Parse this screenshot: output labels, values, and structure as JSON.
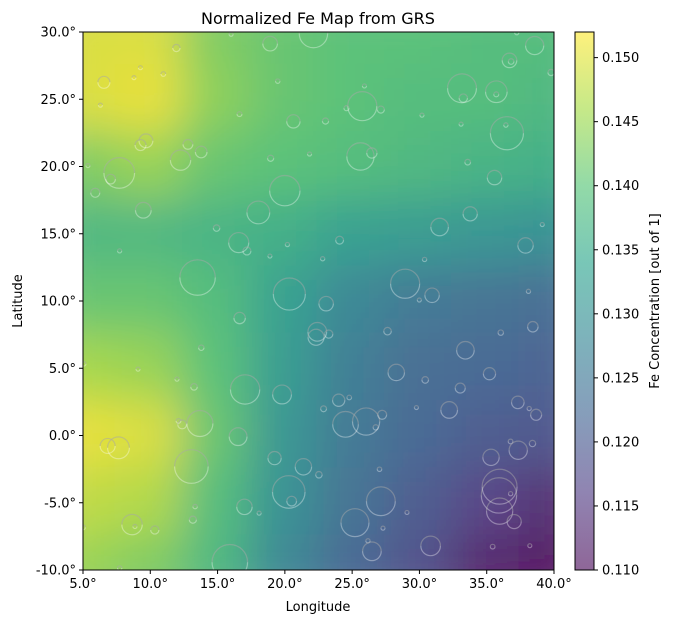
{
  "chart_data": {
    "type": "heatmap",
    "title": "Normalized Fe Map from GRS",
    "xlabel": "Longitude",
    "ylabel": "Latitude",
    "xlim": [
      5,
      40
    ],
    "ylim": [
      -10,
      30
    ],
    "xticks": [
      "5.0°",
      "10.0°",
      "15.0°",
      "20.0°",
      "25.0°",
      "30.0°",
      "35.0°",
      "40.0°"
    ],
    "yticks": [
      "-10.0°",
      "-5.0°",
      "0.0°",
      "5.0°",
      "10.0°",
      "15.0°",
      "20.0°",
      "25.0°",
      "30.0°"
    ],
    "colorbar": {
      "label": "Fe Concentration [out of 1]",
      "range": [
        0.11,
        0.152
      ],
      "ticks": [
        "0.110",
        "0.115",
        "0.120",
        "0.125",
        "0.130",
        "0.135",
        "0.140",
        "0.145",
        "0.150"
      ],
      "colormap": [
        "#440154",
        "#46327e",
        "#365c8d",
        "#277f8e",
        "#1fa187",
        "#4ac16d",
        "#a0da39",
        "#fde725"
      ],
      "alpha": 0.6
    },
    "lon": [
      5,
      10,
      15,
      20,
      25,
      30,
      35,
      40
    ],
    "lat": [
      30,
      25,
      20,
      15,
      10,
      5,
      0,
      -5,
      -10
    ],
    "values": [
      [
        0.15,
        0.15,
        0.143,
        0.141,
        0.14,
        0.14,
        0.139,
        0.139
      ],
      [
        0.15,
        0.151,
        0.144,
        0.141,
        0.14,
        0.139,
        0.139,
        0.138
      ],
      [
        0.143,
        0.145,
        0.141,
        0.14,
        0.139,
        0.138,
        0.137,
        0.136
      ],
      [
        0.138,
        0.138,
        0.137,
        0.136,
        0.133,
        0.132,
        0.131,
        0.13
      ],
      [
        0.141,
        0.141,
        0.139,
        0.133,
        0.128,
        0.125,
        0.124,
        0.123
      ],
      [
        0.146,
        0.145,
        0.14,
        0.132,
        0.126,
        0.123,
        0.122,
        0.121
      ],
      [
        0.151,
        0.15,
        0.141,
        0.131,
        0.125,
        0.122,
        0.12,
        0.119
      ],
      [
        0.148,
        0.147,
        0.139,
        0.13,
        0.124,
        0.12,
        0.116,
        0.113
      ],
      [
        0.145,
        0.143,
        0.138,
        0.128,
        0.122,
        0.118,
        0.112,
        0.11
      ]
    ]
  }
}
